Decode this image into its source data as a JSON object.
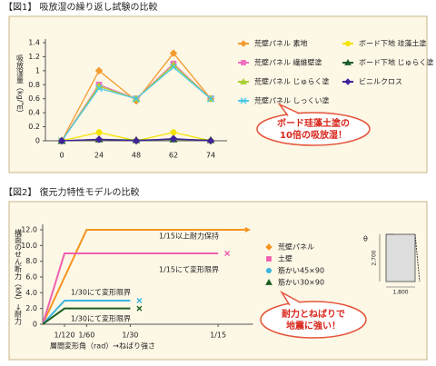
{
  "chart_data": [
    {
      "type": "line",
      "title": "【図1】 吸放湿の繰り返し試験の比較",
      "y_label": "吸放湿量（kg/㎡）",
      "categories": [
        "0",
        "24",
        "48",
        "62",
        "74"
      ],
      "ylim": [
        0,
        1.4
      ],
      "yticks": [
        0,
        0.2,
        0.4,
        0.6,
        0.8,
        1,
        1.2,
        1.4
      ],
      "grid": false,
      "series": [
        {
          "name": "荒壁パネル 素地",
          "color": "#f39a2c",
          "marker": "diamond",
          "values": [
            0,
            1.0,
            0.57,
            1.25,
            0.6
          ]
        },
        {
          "name": "荒壁パネル 繊維壁塗",
          "color": "#f06fc0",
          "marker": "square",
          "values": [
            0,
            0.8,
            0.6,
            1.1,
            0.6
          ]
        },
        {
          "name": "荒壁パネル じゅらく塗",
          "color": "#a8d030",
          "marker": "triangle",
          "values": [
            0,
            0.78,
            0.6,
            1.08,
            0.6
          ]
        },
        {
          "name": "荒壁パネル しっくい塗",
          "color": "#4cc8e8",
          "marker": "x",
          "values": [
            0,
            0.75,
            0.6,
            1.05,
            0.6
          ]
        },
        {
          "name": "ボード下地 珪藻土塗",
          "color": "#f5e400",
          "marker": "circle",
          "values": [
            0,
            0.12,
            0,
            0.12,
            0
          ]
        },
        {
          "name": "ボード下地 じゅらく塗",
          "color": "#1d5e2a",
          "marker": "triangle",
          "values": [
            0,
            0.02,
            0.01,
            0.02,
            0.01
          ]
        },
        {
          "name": "ビニルクロス",
          "color": "#40239a",
          "marker": "diamond",
          "values": [
            0,
            0.02,
            0,
            0.03,
            0
          ]
        }
      ],
      "callout": [
        "ボード珪藻土塗の",
        "10倍の吸放湿！"
      ]
    },
    {
      "type": "line",
      "title": "【図2】 復元力特性モデルの比較",
      "y_label": "構面のせん断力（kN）→耐力",
      "x_label": "層間変形角（rad）→ねばり強さ",
      "xlim": [
        0,
        0.08
      ],
      "xticks": [
        {
          "value": 0.0083,
          "label": "1/120"
        },
        {
          "value": 0.0167,
          "label": "1/60"
        },
        {
          "value": 0.0333,
          "label": "1/30"
        },
        {
          "value": 0.0667,
          "label": "1/15"
        }
      ],
      "ylim": [
        0,
        12
      ],
      "yticks": [
        0,
        {
          "value": 2,
          "label": "2.0"
        },
        {
          "value": 4,
          "label": "4.0"
        },
        {
          "value": 6,
          "label": "6.0"
        },
        {
          "value": 8,
          "label": "8.0"
        },
        {
          "value": 10,
          "label": "10.0"
        },
        {
          "value": 12,
          "label": "12.0"
        }
      ],
      "grid": false,
      "series": [
        {
          "name": "荒壁パネル",
          "color": "#f7941d",
          "marker": "diamond",
          "x": [
            0,
            0.0167,
            0.077
          ],
          "values": [
            0,
            12,
            12
          ]
        },
        {
          "name": "土壁",
          "color": "#ee5fb0",
          "marker": "square",
          "x": [
            0,
            0.0083,
            0.0667
          ],
          "values": [
            0,
            9,
            9
          ]
        },
        {
          "name": "筋かい45×90",
          "color": "#39b5e0",
          "marker": "circle",
          "x": [
            0,
            0.0083,
            0.0333
          ],
          "values": [
            0,
            3,
            3
          ]
        },
        {
          "name": "筋かい30×90",
          "color": "#1b5e20",
          "marker": "triangle",
          "x": [
            0,
            0.0083,
            0.0333
          ],
          "values": [
            0,
            2,
            2
          ]
        }
      ],
      "annotations": [
        "1/15以上耐力保持",
        "1/15にて変形限界",
        "1/30にて変形限界",
        "1/30にて変形限界"
      ],
      "diagram_labels": [
        "θ",
        "2,700",
        "1,800"
      ],
      "callout": [
        "耐力とねばりで",
        "地震に強い！"
      ]
    }
  ]
}
